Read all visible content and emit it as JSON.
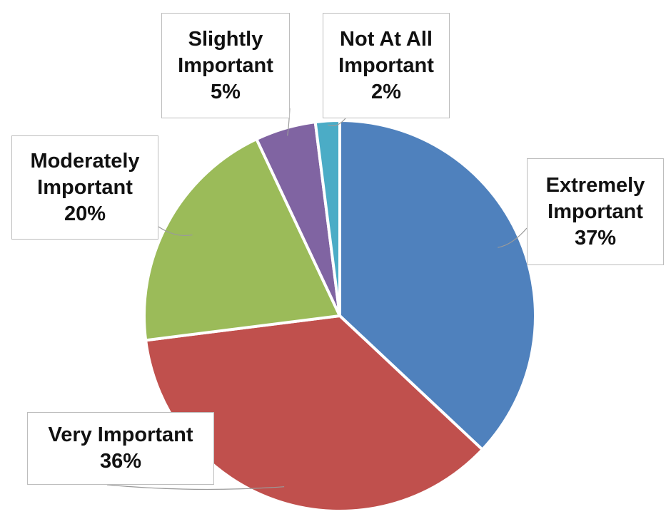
{
  "chart_data": {
    "type": "pie",
    "title": "",
    "start_angle_deg": 0,
    "direction": "clockwise",
    "legend": "none",
    "slices": [
      {
        "label_line1": "Extremely",
        "label_line2": "Important",
        "label": "Extremely Important",
        "value": 37,
        "value_label": "37%",
        "color": "#4F81BD"
      },
      {
        "label_line1": "Very Important",
        "label_line2": "",
        "label": "Very Important",
        "value": 36,
        "value_label": "36%",
        "color": "#C0504D"
      },
      {
        "label_line1": "Moderately",
        "label_line2": "Important",
        "label": "Moderately Important",
        "value": 20,
        "value_label": "20%",
        "color": "#9BBB59"
      },
      {
        "label_line1": "Slightly",
        "label_line2": "Important",
        "label": "Slightly Important",
        "value": 5,
        "value_label": "5%",
        "color": "#8064A2"
      },
      {
        "label_line1": "Not At All",
        "label_line2": "Important",
        "label": "Not At All Important",
        "value": 2,
        "value_label": "2%",
        "color": "#4BACC6"
      }
    ]
  }
}
